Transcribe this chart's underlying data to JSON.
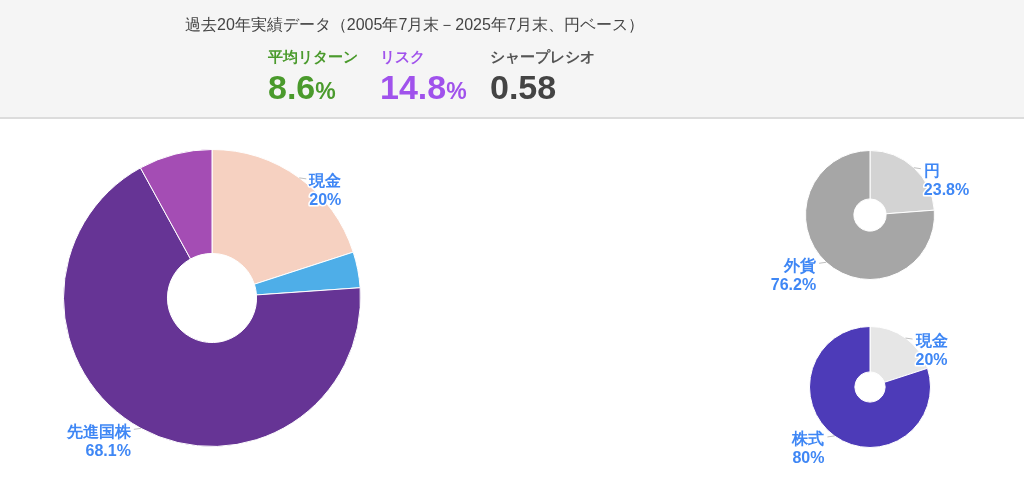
{
  "chart_data": [
    {
      "type": "other",
      "title": "過去20年実績データ（2005年7月末－2025年7月末、円ベース）",
      "annotations": [
        "平均リターン",
        "8.6%",
        "リスク",
        "14.8%",
        "シャープレシオ",
        "0.58"
      ]
    },
    {
      "type": "donut",
      "categories": [
        "現金",
        null,
        "先進国株",
        null
      ],
      "values": [
        20,
        3.9,
        68.1,
        8
      ],
      "colors": [
        "#f6d1c1",
        "#4eaee8",
        "#663495",
        "#a44db4"
      ],
      "value_labels": [
        "20%",
        null,
        "68.1%",
        null
      ]
    },
    {
      "type": "donut",
      "categories": [
        "円",
        "外貨"
      ],
      "values": [
        23.8,
        76.2
      ],
      "colors": [
        "#d3d3d3",
        "#a6a6a6"
      ],
      "value_labels": [
        "23.8%",
        "76.2%"
      ]
    },
    {
      "type": "donut",
      "categories": [
        "現金",
        "株式"
      ],
      "values": [
        20,
        80
      ],
      "colors": [
        "#e6e6e6",
        "#4d3bb8"
      ],
      "value_labels": [
        "20%",
        "80%"
      ]
    }
  ]
}
